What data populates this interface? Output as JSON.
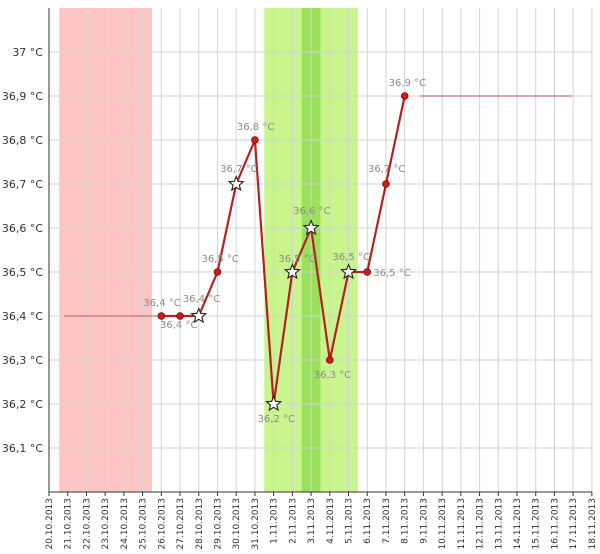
{
  "chart_data": {
    "type": "line",
    "title": "",
    "xlabel": "",
    "ylabel": "",
    "ylim": [
      36.0,
      37.1
    ],
    "y_ticks": [
      "36,1 °C",
      "36,2 °C",
      "36,3 °C",
      "36,4 °C",
      "36,5 °C",
      "36,6 °C",
      "36,7 °C",
      "36,8 °C",
      "36,9 °C",
      "37 °C"
    ],
    "y_tick_values": [
      36.1,
      36.2,
      36.3,
      36.4,
      36.5,
      36.6,
      36.7,
      36.8,
      36.9,
      37.0
    ],
    "x_ticks": [
      "20.10.2013",
      "21.10.2013",
      "22.10.2013",
      "23.10.2013",
      "24.10.2013",
      "25.10.2013",
      "26.10.2013",
      "27.10.2013",
      "28.10.2013",
      "29.10.2013",
      "30.10.2013",
      "31.10.2013",
      "1.11.2013",
      "2.11.2013",
      "3.11.2013",
      "4.11.2013",
      "5.11.2013",
      "6.11.2013",
      "7.11.2013",
      "8.11.2013",
      "9.11.2013",
      "10.11.2013",
      "11.11.2013",
      "12.11.2013",
      "13.11.2013",
      "14.11.2013",
      "15.11.2013",
      "16.11.2013",
      "17.11.2013",
      "18.11.2013"
    ],
    "grid": true,
    "bands": [
      {
        "from": "20.10.2013",
        "to": "25.10.2013",
        "color": "#ffc4c4"
      },
      {
        "from": "31.10.2013",
        "to": "5.11.2013",
        "color": "#c8f58c"
      },
      {
        "from": "2.11.2013",
        "to": "3.11.2013",
        "color": "#9ae05a"
      }
    ],
    "reference_lines": [
      {
        "from": "20.10.2013",
        "to": "28.10.2013",
        "value": 36.4,
        "color": "#c07070"
      },
      {
        "from": "8.11.2013",
        "to": "17.11.2013",
        "value": 36.9,
        "color": "#c07070"
      }
    ],
    "series": [
      {
        "color": "#b22222",
        "points": [
          {
            "x": "26.10.2013",
            "y": 36.4,
            "label": "36,4 °C",
            "marker": "dot"
          },
          {
            "x": "27.10.2013",
            "y": 36.4,
            "label": "36,4 °C",
            "marker": "dot"
          },
          {
            "x": "28.10.2013",
            "y": 36.4,
            "label": "36,4 °C",
            "marker": "star"
          },
          {
            "x": "29.10.2013",
            "y": 36.5,
            "label": "36,5 °C",
            "marker": "dot"
          },
          {
            "x": "30.10.2013",
            "y": 36.7,
            "label": "36,7 °C",
            "marker": "star"
          },
          {
            "x": "31.10.2013",
            "y": 36.8,
            "label": "36,8 °C",
            "marker": "dot"
          },
          {
            "x": "1.11.2013",
            "y": 36.2,
            "label": "36,2 °C",
            "marker": "star"
          },
          {
            "x": "2.11.2013",
            "y": 36.5,
            "label": "36,5 °C",
            "marker": "star"
          },
          {
            "x": "3.11.2013",
            "y": 36.6,
            "label": "36,6 °C",
            "marker": "star"
          },
          {
            "x": "4.11.2013",
            "y": 36.3,
            "label": "36,3 °C",
            "marker": "dot"
          },
          {
            "x": "5.11.2013",
            "y": 36.5,
            "label": "36,5 °C",
            "marker": "star"
          },
          {
            "x": "6.11.2013",
            "y": 36.5,
            "label": "36,5 °C",
            "marker": "dot"
          },
          {
            "x": "7.11.2013",
            "y": 36.7,
            "label": "36,7 °C",
            "marker": "dot"
          },
          {
            "x": "8.11.2013",
            "y": 36.9,
            "label": "36,9 °C",
            "marker": "dot"
          }
        ]
      }
    ]
  }
}
